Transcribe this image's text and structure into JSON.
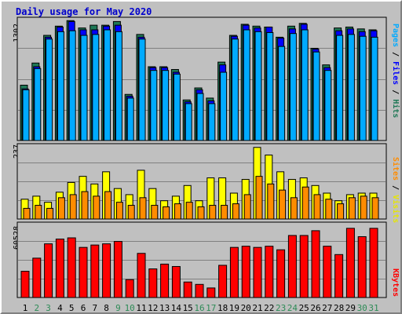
{
  "title": "Daily usage for May 2020",
  "colors": {
    "hits": "#1e7856",
    "files": "#0000ff",
    "pages": "#00aaff",
    "visits": "#ff8c00",
    "sites": "#ffff00",
    "kbytes": "#ff0000",
    "weekend_day": "#2e8b57",
    "weekday": "#000000"
  },
  "legend": {
    "top": {
      "pages": "Pages",
      "files": "Files",
      "hits": "Hits",
      "sep": " / "
    },
    "mid": {
      "sites": "Sites",
      "visits": "Visits",
      "sep": " / "
    },
    "bottom": {
      "kbytes": "KBytes"
    }
  },
  "weekend_days": [
    2,
    3,
    9,
    10,
    16,
    17,
    23,
    24,
    30,
    31
  ],
  "chart_data": [
    {
      "type": "bar",
      "panel": "hits-files-pages",
      "ymax_label": "1302",
      "ylim": [
        0,
        1302
      ],
      "categories": [
        "1",
        "2",
        "3",
        "4",
        "5",
        "6",
        "7",
        "8",
        "9",
        "10",
        "11",
        "12",
        "13",
        "14",
        "15",
        "16",
        "17",
        "18",
        "19",
        "20",
        "21",
        "22",
        "23",
        "24",
        "25",
        "26",
        "27",
        "28",
        "29",
        "30",
        "31"
      ],
      "series": [
        {
          "name": "Hits",
          "values": [
            600,
            840,
            1140,
            1240,
            1300,
            1220,
            1250,
            1250,
            1290,
            500,
            1150,
            800,
            800,
            770,
            440,
            570,
            460,
            850,
            1140,
            1260,
            1240,
            1230,
            1120,
            1240,
            1270,
            1000,
            820,
            1220,
            1230,
            1210,
            1200
          ]
        },
        {
          "name": "Files",
          "values": [
            560,
            800,
            1120,
            1230,
            1290,
            1200,
            1200,
            1240,
            1250,
            480,
            1120,
            790,
            790,
            740,
            420,
            550,
            430,
            820,
            1130,
            1250,
            1220,
            1230,
            1110,
            1210,
            1260,
            990,
            790,
            1190,
            1210,
            1180,
            1190
          ]
        },
        {
          "name": "Pages",
          "values": [
            550,
            780,
            1100,
            1180,
            1190,
            1140,
            1150,
            1200,
            1180,
            460,
            1100,
            760,
            760,
            720,
            400,
            510,
            400,
            740,
            1100,
            1200,
            1180,
            1170,
            1020,
            1160,
            1200,
            960,
            760,
            1140,
            1150,
            1130,
            1120
          ]
        }
      ]
    },
    {
      "type": "bar",
      "panel": "visits-sites",
      "ymax_label": "237",
      "ylim": [
        0,
        237
      ],
      "categories": [
        "1",
        "2",
        "3",
        "4",
        "5",
        "6",
        "7",
        "8",
        "9",
        "10",
        "11",
        "12",
        "13",
        "14",
        "15",
        "16",
        "17",
        "18",
        "19",
        "20",
        "21",
        "22",
        "23",
        "24",
        "25",
        "26",
        "27",
        "28",
        "29",
        "30",
        "31"
      ],
      "series": [
        {
          "name": "Visits",
          "values": [
            65,
            75,
            55,
            88,
            120,
            140,
            115,
            155,
            100,
            80,
            160,
            100,
            60,
            75,
            110,
            60,
            135,
            135,
            85,
            130,
            235,
            210,
            155,
            130,
            135,
            110,
            85,
            60,
            80,
            85,
            85
          ]
        },
        {
          "name": "Sites",
          "values": [
            35,
            45,
            35,
            70,
            80,
            90,
            75,
            90,
            55,
            45,
            70,
            45,
            40,
            50,
            55,
            40,
            45,
            45,
            50,
            80,
            140,
            115,
            95,
            70,
            105,
            80,
            65,
            50,
            70,
            75,
            70
          ]
        }
      ]
    },
    {
      "type": "bar",
      "panel": "kbytes",
      "ymax_label": "60528",
      "ylim": [
        0,
        60528
      ],
      "categories": [
        "1",
        "2",
        "3",
        "4",
        "5",
        "6",
        "7",
        "8",
        "9",
        "10",
        "11",
        "12",
        "13",
        "14",
        "15",
        "16",
        "17",
        "18",
        "19",
        "20",
        "21",
        "22",
        "23",
        "24",
        "25",
        "26",
        "27",
        "28",
        "29",
        "30",
        "31"
      ],
      "series": [
        {
          "name": "KBytes",
          "values": [
            22000,
            33000,
            45000,
            49000,
            50000,
            42000,
            44000,
            45000,
            47000,
            15000,
            37000,
            24000,
            28000,
            26000,
            13000,
            11000,
            8000,
            27000,
            42000,
            43000,
            42000,
            43000,
            40000,
            52000,
            52000,
            56000,
            43000,
            36000,
            58000,
            51000,
            58000
          ]
        }
      ]
    }
  ]
}
